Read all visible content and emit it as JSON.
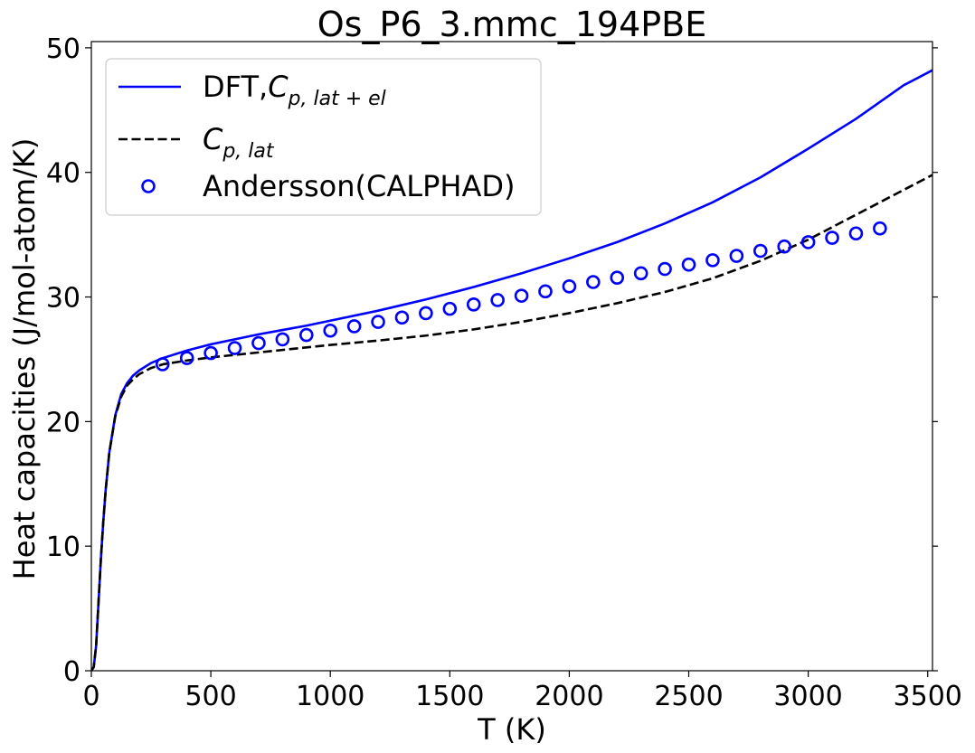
{
  "chart_data": {
    "type": "line",
    "title": "Os_P6_3.mmc_194PBE",
    "xlabel": "T (K)",
    "ylabel": "Heat capacities (J/mol-atom/K)",
    "xlim": [
      0,
      3520
    ],
    "ylim": [
      0,
      50.5
    ],
    "xticks": [
      0,
      500,
      1000,
      1500,
      2000,
      2500,
      3000,
      3500
    ],
    "yticks": [
      0,
      10,
      20,
      30,
      40,
      50
    ],
    "grid": false,
    "legend": {
      "placement": "top-left"
    },
    "series": [
      {
        "name": "DFT,C_{p,lat+el}",
        "name_base": "DFT,",
        "name_symbol": "C",
        "name_sub": "p, lat + el",
        "style": "solid",
        "color": "#0000ff",
        "x": [
          0,
          10,
          20,
          30,
          40,
          50,
          60,
          75,
          100,
          125,
          150,
          175,
          200,
          250,
          300,
          400,
          500,
          600,
          700,
          800,
          900,
          1000,
          1200,
          1400,
          1600,
          1800,
          2000,
          2200,
          2400,
          2600,
          2800,
          3000,
          3200,
          3400,
          3520
        ],
        "y": [
          0,
          0.3,
          2.0,
          5.5,
          9.0,
          12.0,
          14.5,
          17.5,
          20.5,
          22.2,
          23.1,
          23.7,
          24.1,
          24.7,
          25.1,
          25.7,
          26.2,
          26.6,
          27.0,
          27.35,
          27.7,
          28.1,
          28.9,
          29.8,
          30.8,
          31.9,
          33.1,
          34.4,
          35.9,
          37.6,
          39.6,
          41.9,
          44.3,
          47.0,
          48.2
        ]
      },
      {
        "name": "C_{p,lat}",
        "name_base": "",
        "name_symbol": "C",
        "name_sub": "p, lat",
        "style": "dashed",
        "color": "#000000",
        "x": [
          0,
          10,
          20,
          30,
          40,
          50,
          60,
          75,
          100,
          125,
          150,
          175,
          200,
          250,
          300,
          400,
          500,
          600,
          700,
          800,
          900,
          1000,
          1200,
          1400,
          1600,
          1800,
          2000,
          2200,
          2400,
          2600,
          2800,
          3000,
          3200,
          3400,
          3520
        ],
        "y": [
          0,
          0.3,
          2.0,
          5.5,
          9.0,
          12.0,
          14.5,
          17.5,
          20.4,
          22.0,
          22.9,
          23.4,
          23.8,
          24.3,
          24.6,
          24.9,
          25.15,
          25.35,
          25.55,
          25.75,
          25.95,
          26.15,
          26.5,
          26.9,
          27.4,
          28.0,
          28.7,
          29.5,
          30.4,
          31.5,
          32.9,
          34.6,
          36.6,
          38.6,
          39.8
        ]
      },
      {
        "name": "Andersson(CALPHAD)",
        "style": "markers",
        "color": "#0000ff",
        "x": [
          298,
          400,
          500,
          600,
          700,
          800,
          900,
          1000,
          1100,
          1200,
          1300,
          1400,
          1500,
          1600,
          1700,
          1800,
          1900,
          2000,
          2100,
          2200,
          2300,
          2400,
          2500,
          2600,
          2700,
          2800,
          2900,
          3000,
          3100,
          3200,
          3300
        ],
        "y": [
          24.6,
          25.1,
          25.5,
          25.9,
          26.3,
          26.6,
          26.95,
          27.3,
          27.65,
          28.0,
          28.35,
          28.7,
          29.05,
          29.4,
          29.75,
          30.1,
          30.45,
          30.85,
          31.2,
          31.55,
          31.9,
          32.25,
          32.6,
          32.95,
          33.3,
          33.7,
          34.05,
          34.4,
          34.75,
          35.1,
          35.5
        ]
      }
    ]
  }
}
